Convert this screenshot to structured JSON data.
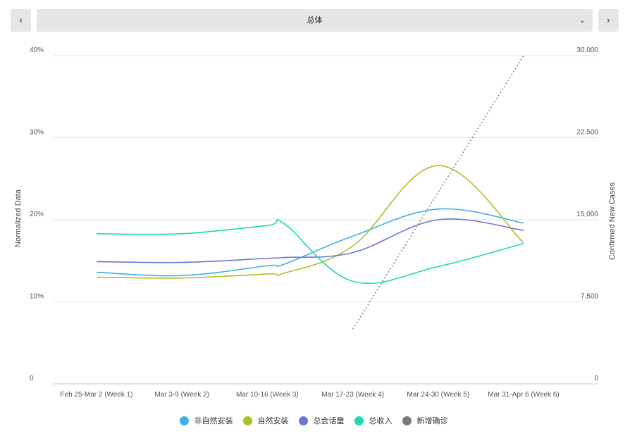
{
  "nav": {
    "prev_icon": "‹",
    "next_icon": "›",
    "selected_option": "总体",
    "dropdown_icon": "⌄"
  },
  "chart_data": {
    "type": "line",
    "categories": [
      "Feb 25-Mar 2 (Week 1)",
      "Mar 3-9 (Week 2)",
      "Mar 10-16 (Week 3)",
      "Mar 17-23 (Week 4)",
      "Mar 24-30 (Week 5)",
      "Mar 31-Apr 6 (Week 6)"
    ],
    "ylabel_left": "Normalized Data",
    "ylabel_right": "Confirmed New Cases",
    "y_left_ticks": [
      "0",
      "10%",
      "20%",
      "30%",
      "40%"
    ],
    "y_right_ticks": [
      "0",
      "7,500",
      "15,000",
      "22,500",
      "30,000"
    ],
    "ylim_left": [
      0,
      40
    ],
    "ylim_right": [
      0,
      30000
    ],
    "grid": true,
    "legend_position": "bottom",
    "series": [
      {
        "name": "非自然安装",
        "color": "#42ade8",
        "axis": "left",
        "x": [
          0,
          1,
          2,
          2.2,
          3,
          4,
          5
        ],
        "values": [
          13.6,
          13.2,
          14.4,
          14.6,
          18.0,
          21.3,
          19.6
        ]
      },
      {
        "name": "自然安装",
        "color": "#a4c42a",
        "axis": "left",
        "x": [
          0,
          1,
          2,
          2.2,
          3,
          4,
          5
        ],
        "values": [
          13.0,
          12.9,
          13.4,
          13.5,
          16.8,
          26.6,
          17.2
        ]
      },
      {
        "name": "总会话量",
        "color": "#6a78d4",
        "axis": "left",
        "x": [
          0,
          1,
          2,
          2.2,
          3,
          4,
          5
        ],
        "values": [
          14.9,
          14.8,
          15.3,
          15.4,
          16.0,
          20.0,
          18.7
        ]
      },
      {
        "name": "总收入",
        "color": "#1ed9b2",
        "axis": "left",
        "x": [
          0,
          1,
          2,
          2.2,
          3,
          4,
          5
        ],
        "values": [
          18.3,
          18.3,
          19.3,
          19.5,
          12.5,
          14.3,
          17.1
        ]
      },
      {
        "name": "新增确诊",
        "color": "#7a7a7a",
        "axis": "right",
        "dashed": true,
        "x": [
          3,
          5
        ],
        "values": [
          5000,
          30000
        ]
      }
    ]
  }
}
